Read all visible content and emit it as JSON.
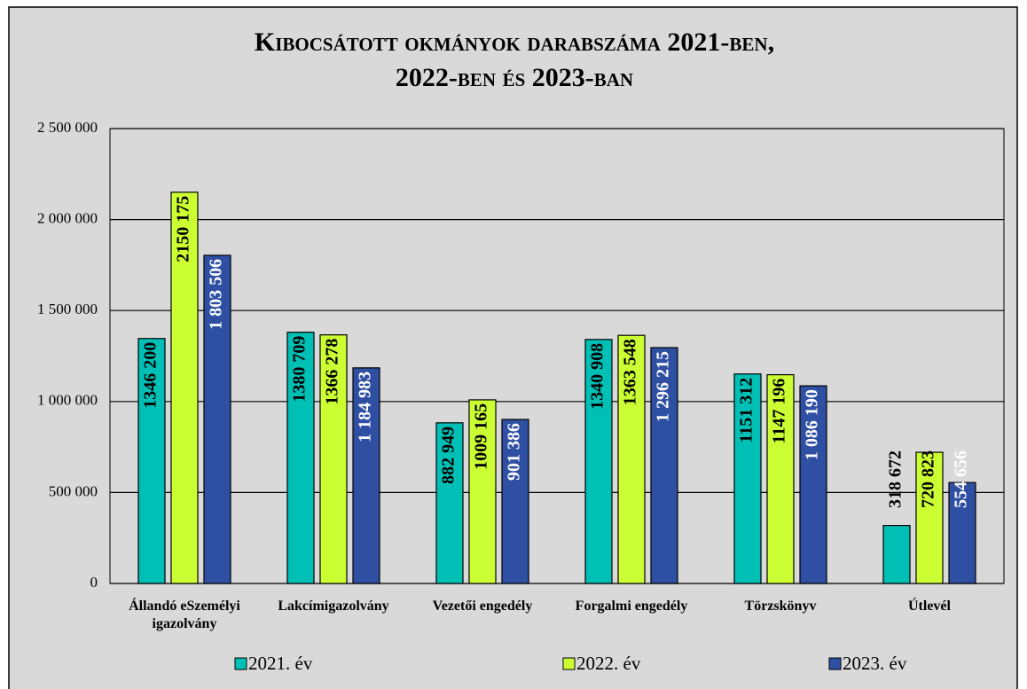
{
  "chart_data": {
    "type": "bar",
    "title": [
      "Kibocsátott okmányok darabszáma 2021-ben,",
      "2022-ben és 2023-ban"
    ],
    "categories": [
      "Állandó eSzemélyi igazolvány",
      "Lakcímigazolvány",
      "Vezetői engedély",
      "Forgalmi engedély",
      "Törzskönyv",
      "Útlevél"
    ],
    "series": [
      {
        "name": "2021. év",
        "color": "#00c0b5",
        "values": [
          1346200,
          1380709,
          882949,
          1340908,
          1151312,
          318672
        ],
        "value_labels": [
          "1346 200",
          "1380 709",
          "882 949",
          "1340 908",
          "1151 312",
          "318 672"
        ]
      },
      {
        "name": "2022. év",
        "color": "#ccff33",
        "values": [
          2150175,
          1366278,
          1009165,
          1363548,
          1147196,
          720823
        ],
        "value_labels": [
          "2150 175",
          "1366 278",
          "1009 165",
          "1363 548",
          "1147 196",
          "720 823"
        ]
      },
      {
        "name": "2023. év",
        "color": "#2e4fa2",
        "values": [
          1803506,
          1184983,
          901386,
          1296215,
          1086190,
          554656
        ],
        "value_labels": [
          "1 803 506",
          "1 184 983",
          "901 386",
          "1 296 215",
          "1 086 190",
          "554 656"
        ]
      }
    ],
    "ylim": [
      0,
      2500000
    ],
    "yticks": [
      0,
      {
        "value": 500000,
        "label": "500 000"
      },
      {
        "value": 1000000,
        "label": "1 000 000"
      },
      {
        "value": 1500000,
        "label": "1 500 000"
      },
      {
        "value": 2000000,
        "label": "2 000 000"
      },
      {
        "value": 2500000,
        "label": "2 500 000"
      }
    ],
    "grid": true,
    "legend": "bottom"
  }
}
